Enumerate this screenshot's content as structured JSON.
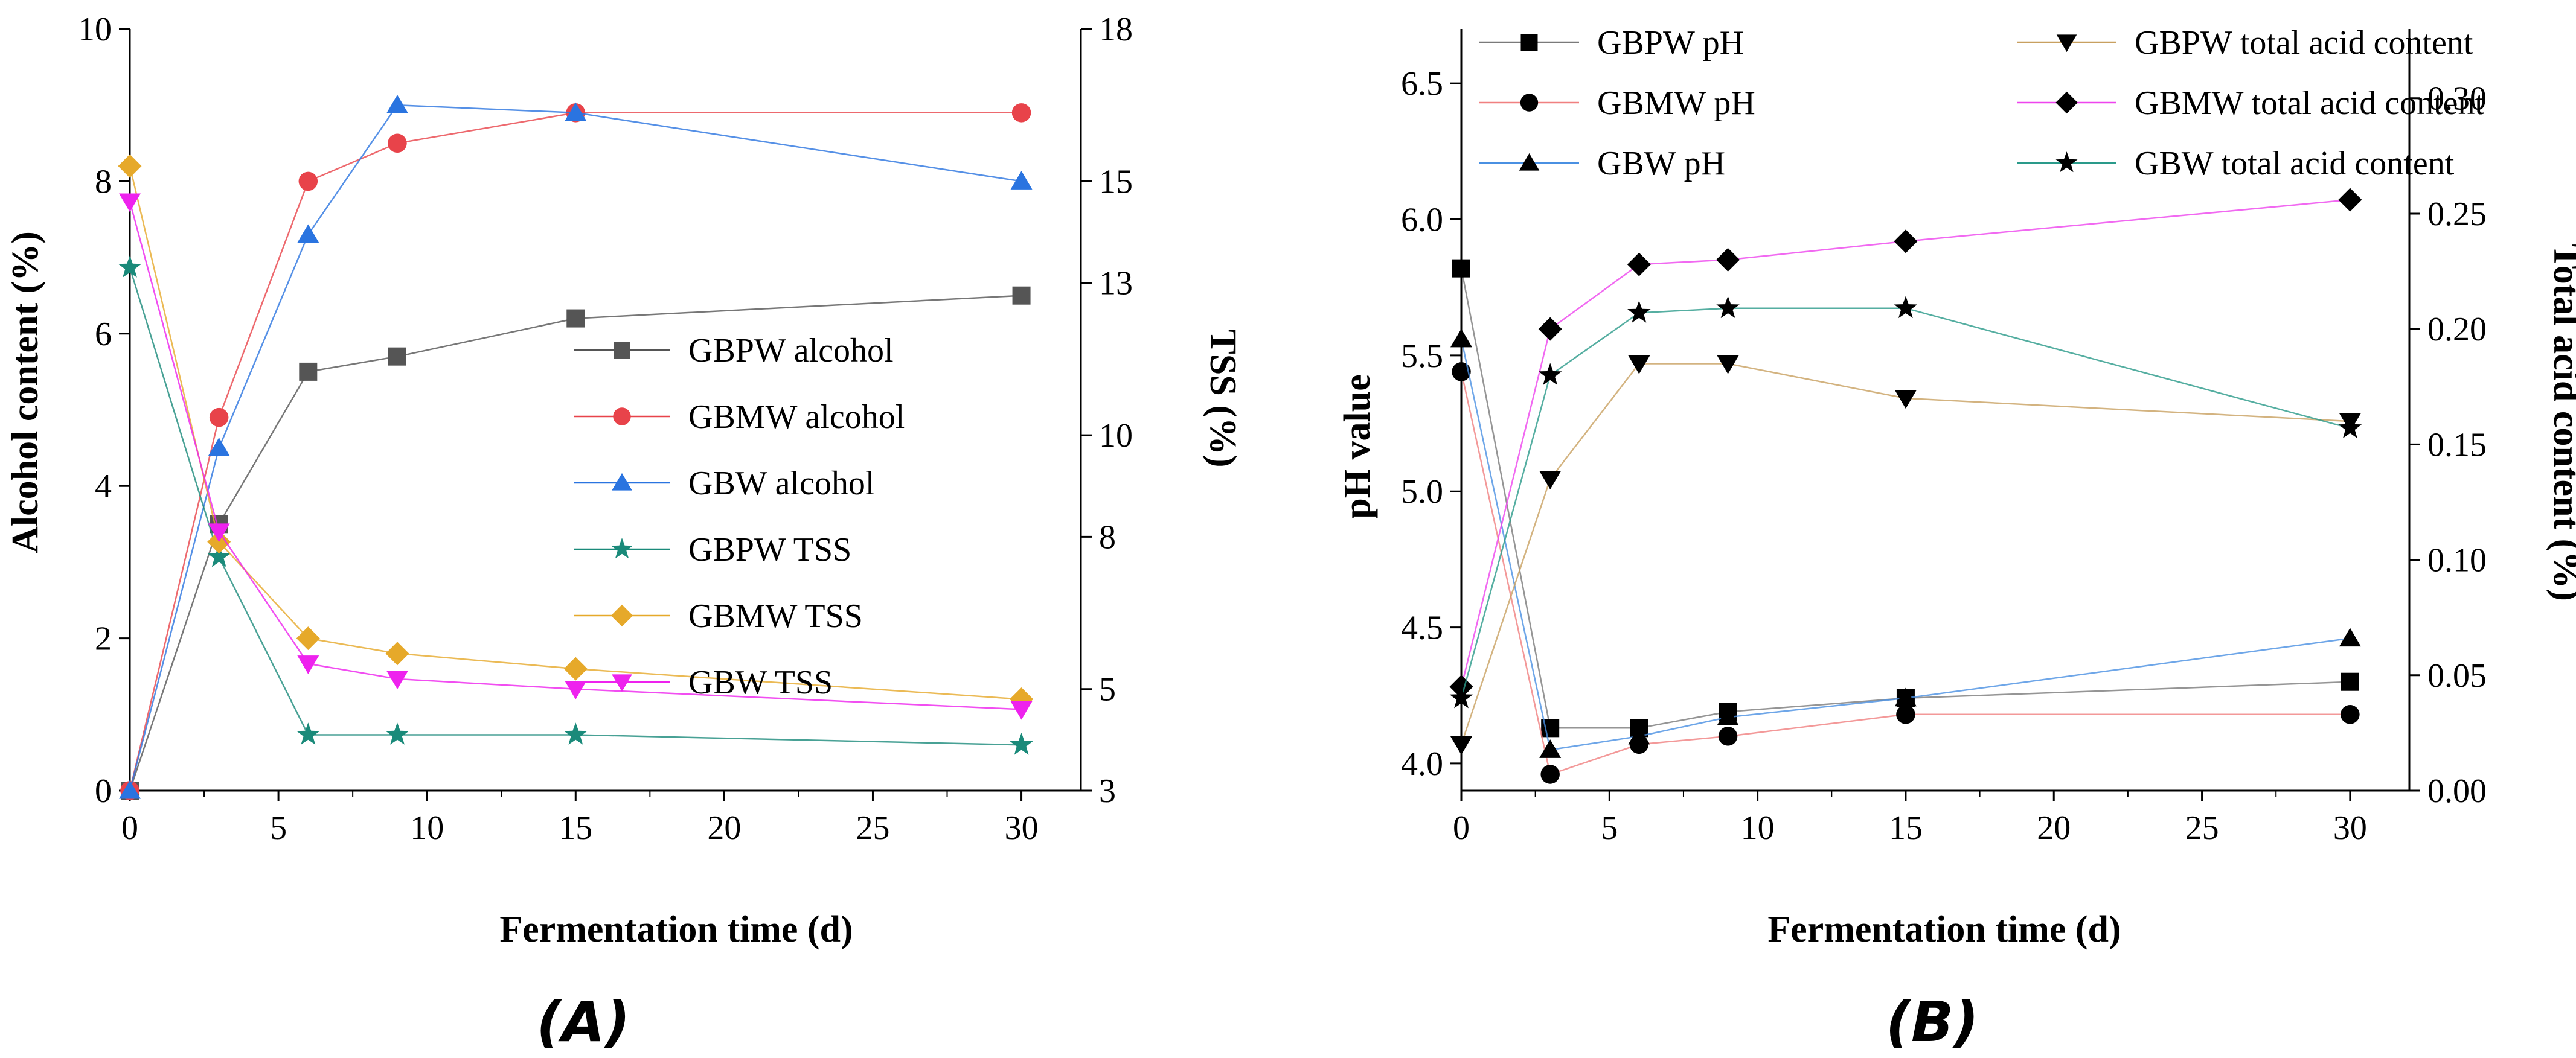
{
  "chart_data": [
    {
      "type": "line",
      "panel_label": "(A)",
      "xlabel": "Fermentation time (d)",
      "ylabel": "Alcohol content (%)",
      "y2label": "TSS (%)",
      "xlim": [
        0,
        32
      ],
      "ylim": [
        0,
        10
      ],
      "y2lim": [
        3,
        18
      ],
      "xticks": [
        "0",
        "5",
        "10",
        "15",
        "20",
        "25",
        "30"
      ],
      "yticks": [
        "0",
        "2",
        "4",
        "6",
        "8",
        "10"
      ],
      "y2ticks": [
        "3",
        "5",
        "8",
        "10",
        "13",
        "15",
        "18"
      ],
      "legend_placement": "center-right",
      "series": [
        {
          "name": "GBPW alcohol",
          "axis": "left",
          "color": "#555555",
          "marker": "square",
          "x": [
            0,
            3,
            6,
            9,
            15,
            30
          ],
          "y": [
            0,
            3.5,
            5.5,
            5.7,
            6.2,
            6.5
          ]
        },
        {
          "name": "GBMW alcohol",
          "axis": "left",
          "color": "#e8434a",
          "marker": "circle",
          "x": [
            0,
            3,
            6,
            9,
            15,
            30
          ],
          "y": [
            0,
            4.9,
            8.0,
            8.5,
            8.9,
            8.9
          ]
        },
        {
          "name": "GBW alcohol",
          "axis": "left",
          "color": "#2a74e0",
          "marker": "triangle",
          "x": [
            0,
            3,
            6,
            9,
            15,
            30
          ],
          "y": [
            0,
            4.5,
            7.3,
            9.0,
            8.9,
            8.0
          ]
        },
        {
          "name": "GBPW TSS",
          "axis": "right",
          "color": "#1a8a7a",
          "marker": "star",
          "x": [
            0,
            3,
            6,
            9,
            15,
            30
          ],
          "y": [
            13.3,
            7.6,
            4.1,
            4.1,
            4.1,
            3.9
          ]
        },
        {
          "name": "GBMW TSS",
          "axis": "right",
          "color": "#e6a92a",
          "marker": "diamond",
          "x": [
            0,
            3,
            6,
            9,
            15,
            30
          ],
          "y": [
            15.3,
            7.9,
            6.0,
            5.7,
            5.4,
            4.8
          ]
        },
        {
          "name": "GBW TSS",
          "axis": "right",
          "color": "#ee22ee",
          "marker": "triangle-down",
          "x": [
            0,
            3,
            6,
            9,
            15,
            30
          ],
          "y": [
            14.6,
            8.1,
            5.5,
            5.2,
            5.0,
            4.6
          ]
        }
      ]
    },
    {
      "type": "line",
      "panel_label": "(B)",
      "xlabel": "Fermentation time (d)",
      "ylabel": "pH value",
      "y2label": "Total acid content (%)",
      "xlim": [
        0,
        32
      ],
      "ylim": [
        3.9,
        6.7
      ],
      "y2lim": [
        0,
        0.33
      ],
      "xticks": [
        "0",
        "5",
        "10",
        "15",
        "20",
        "25",
        "30"
      ],
      "yticks": [
        "4.0",
        "4.5",
        "5.0",
        "5.5",
        "6.0",
        "6.5"
      ],
      "y2ticks": [
        "0.00",
        "0.05",
        "0.10",
        "0.15",
        "0.20",
        "0.25",
        "0.30"
      ],
      "legend_placement": "top",
      "series": [
        {
          "name": "GBPW pH",
          "axis": "left",
          "color": "#7a7a7a",
          "marker": "square",
          "x": [
            0,
            3,
            6,
            9,
            15,
            30
          ],
          "y": [
            5.82,
            4.13,
            4.13,
            4.19,
            4.24,
            4.3
          ]
        },
        {
          "name": "GBMW pH",
          "axis": "left",
          "color": "#f08080",
          "marker": "circle",
          "x": [
            0,
            3,
            6,
            9,
            15,
            30
          ],
          "y": [
            5.44,
            3.96,
            4.07,
            4.1,
            4.18,
            4.18
          ]
        },
        {
          "name": "GBW pH",
          "axis": "left",
          "color": "#4a90e2",
          "marker": "triangle",
          "x": [
            0,
            3,
            6,
            9,
            15,
            30
          ],
          "y": [
            5.56,
            4.05,
            4.1,
            4.17,
            4.24,
            4.46
          ]
        },
        {
          "name": "GBPW total acid content",
          "axis": "right",
          "color": "#c8a060",
          "marker": "triangle-down",
          "x": [
            0,
            3,
            6,
            9,
            15,
            30
          ],
          "y": [
            0.02,
            0.135,
            0.185,
            0.185,
            0.17,
            0.16
          ]
        },
        {
          "name": "GBMW total acid content",
          "axis": "right",
          "color": "#ee44ee",
          "marker": "diamond",
          "x": [
            0,
            3,
            6,
            9,
            15,
            30
          ],
          "y": [
            0.045,
            0.2,
            0.228,
            0.23,
            0.238,
            0.256
          ]
        },
        {
          "name": "GBW total acid content",
          "axis": "right",
          "color": "#2a9a8a",
          "marker": "star",
          "x": [
            0,
            3,
            6,
            9,
            15,
            30
          ],
          "y": [
            0.04,
            0.18,
            0.207,
            0.209,
            0.209,
            0.157
          ]
        }
      ]
    }
  ]
}
